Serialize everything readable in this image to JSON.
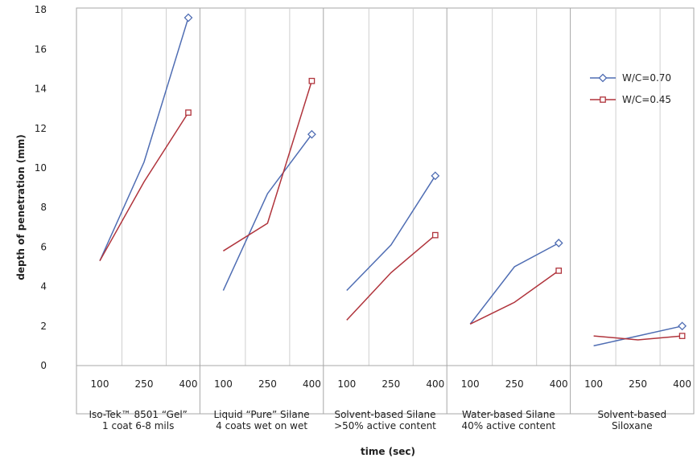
{
  "chart_data": {
    "type": "line",
    "ylabel": "depth of penetration (mm)",
    "xlabel": "time (sec)",
    "ylim": [
      0,
      18
    ],
    "yticks": [
      0,
      2,
      4,
      6,
      8,
      10,
      12,
      14,
      16,
      18
    ],
    "grid": "vertical dividers and minor x gridlines",
    "legend": {
      "placement": "top-right",
      "entries": [
        "W/C=0.70",
        "W/C=0.45"
      ]
    },
    "x_ticks": [
      "100",
      "250",
      "400"
    ],
    "groups": [
      {
        "label": [
          "Iso-Tek™ 8501 “Gel”",
          "1 coat 6-8 mils"
        ]
      },
      {
        "label": [
          "Liquid “Pure” Silane",
          "4 coats wet on wet"
        ]
      },
      {
        "label": [
          "Solvent-based Silane",
          ">50% active content"
        ]
      },
      {
        "label": [
          "Water-based Silane",
          "40% active content"
        ]
      },
      {
        "label": [
          "Solvent-based",
          "Siloxane"
        ]
      }
    ],
    "series": [
      {
        "name": "W/C=0.70",
        "color": "#4f6db3",
        "marker": "diamond",
        "values": [
          [
            5.3,
            10.3,
            17.6
          ],
          [
            3.8,
            8.7,
            11.7
          ],
          [
            3.8,
            6.1,
            9.6
          ],
          [
            2.1,
            5.0,
            6.2
          ],
          [
            1.0,
            1.5,
            2.0
          ]
        ]
      },
      {
        "name": "W/C=0.45",
        "color": "#b0343c",
        "marker": "square",
        "values": [
          [
            5.3,
            9.3,
            12.8
          ],
          [
            5.8,
            7.2,
            14.4
          ],
          [
            2.3,
            4.7,
            6.6
          ],
          [
            2.1,
            3.2,
            4.8
          ],
          [
            1.5,
            1.3,
            1.5
          ]
        ]
      }
    ]
  }
}
